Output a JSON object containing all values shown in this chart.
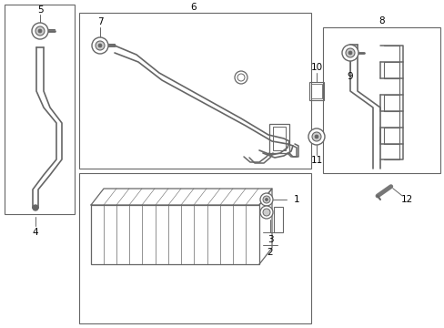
{
  "bg": "#ffffff",
  "lc": "#666666",
  "black": "#000000",
  "fig_w": 4.89,
  "fig_h": 3.6,
  "dpi": 100
}
